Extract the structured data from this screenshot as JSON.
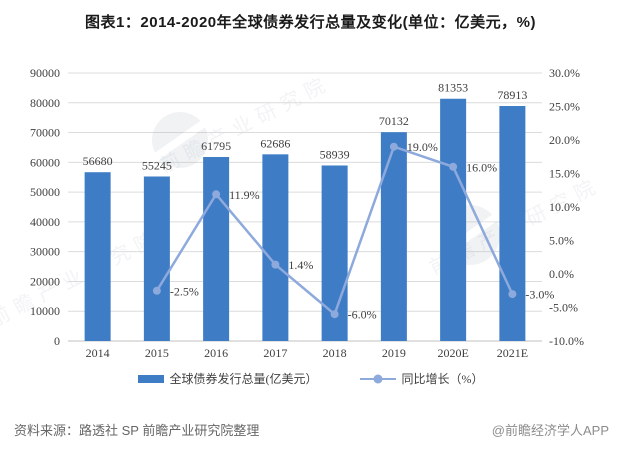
{
  "title": "图表1：2014-2020年全球债券发行总量及变化(单位：亿美元，%)",
  "watermark_text": "前瞻产业研究院",
  "footer": {
    "source": "资料来源：路透社 SP 前瞻产业研究院整理",
    "brand": "@前瞻经济学人APP"
  },
  "colors": {
    "bar": "#3E7CC6",
    "line": "#8EA9DB",
    "grid": "#DCDCDC",
    "axis_line": "#C0C0C0",
    "text": "#404040",
    "title_text": "#1A1A1A",
    "source_text": "#666666",
    "brand_text": "#8C8C8C",
    "watermark": "#9AA7B8"
  },
  "legend": {
    "items": [
      {
        "type": "bar",
        "label": "全球债券发行总量(亿美元）"
      },
      {
        "type": "line",
        "label": "同比增长（%）"
      }
    ]
  },
  "chart_data": {
    "type": "bar",
    "subtype": "bar+line combo, dual axis",
    "title": "图表1：2014-2020年全球债券发行总量及变化(单位：亿美元，%)",
    "categories": [
      "2014",
      "2015",
      "2016",
      "2017",
      "2018",
      "2019",
      "2020E",
      "2021E"
    ],
    "series": [
      {
        "name": "全球债券发行总量(亿美元）",
        "type": "bar",
        "axis": "left",
        "values": [
          56680,
          55245,
          61795,
          62686,
          58939,
          70132,
          81353,
          78913
        ],
        "data_labels": [
          "56680",
          "55245",
          "61795",
          "62686",
          "58939",
          "70132",
          "81353",
          "78913"
        ]
      },
      {
        "name": "同比增长（%）",
        "type": "line",
        "axis": "right",
        "values": [
          null,
          -2.5,
          11.9,
          1.4,
          -6.0,
          19.0,
          16.0,
          -3.0
        ],
        "data_labels": [
          "",
          "-2.5%",
          "11.9%",
          "1.4%",
          "-6.0%",
          "19.0%",
          "16.0%",
          "-3.0%"
        ]
      }
    ],
    "left_axis": {
      "min": 0,
      "max": 90000,
      "step": 10000,
      "ticks": [
        "0",
        "10000",
        "20000",
        "30000",
        "40000",
        "50000",
        "60000",
        "70000",
        "80000",
        "90000"
      ]
    },
    "right_axis": {
      "min": -10,
      "max": 30,
      "step": 5,
      "ticks": [
        "-10.0%",
        "-5.0%",
        "0.0%",
        "5.0%",
        "10.0%",
        "15.0%",
        "20.0%",
        "25.0%",
        "30.0%"
      ]
    },
    "grid": true,
    "legend_position": "bottom"
  }
}
